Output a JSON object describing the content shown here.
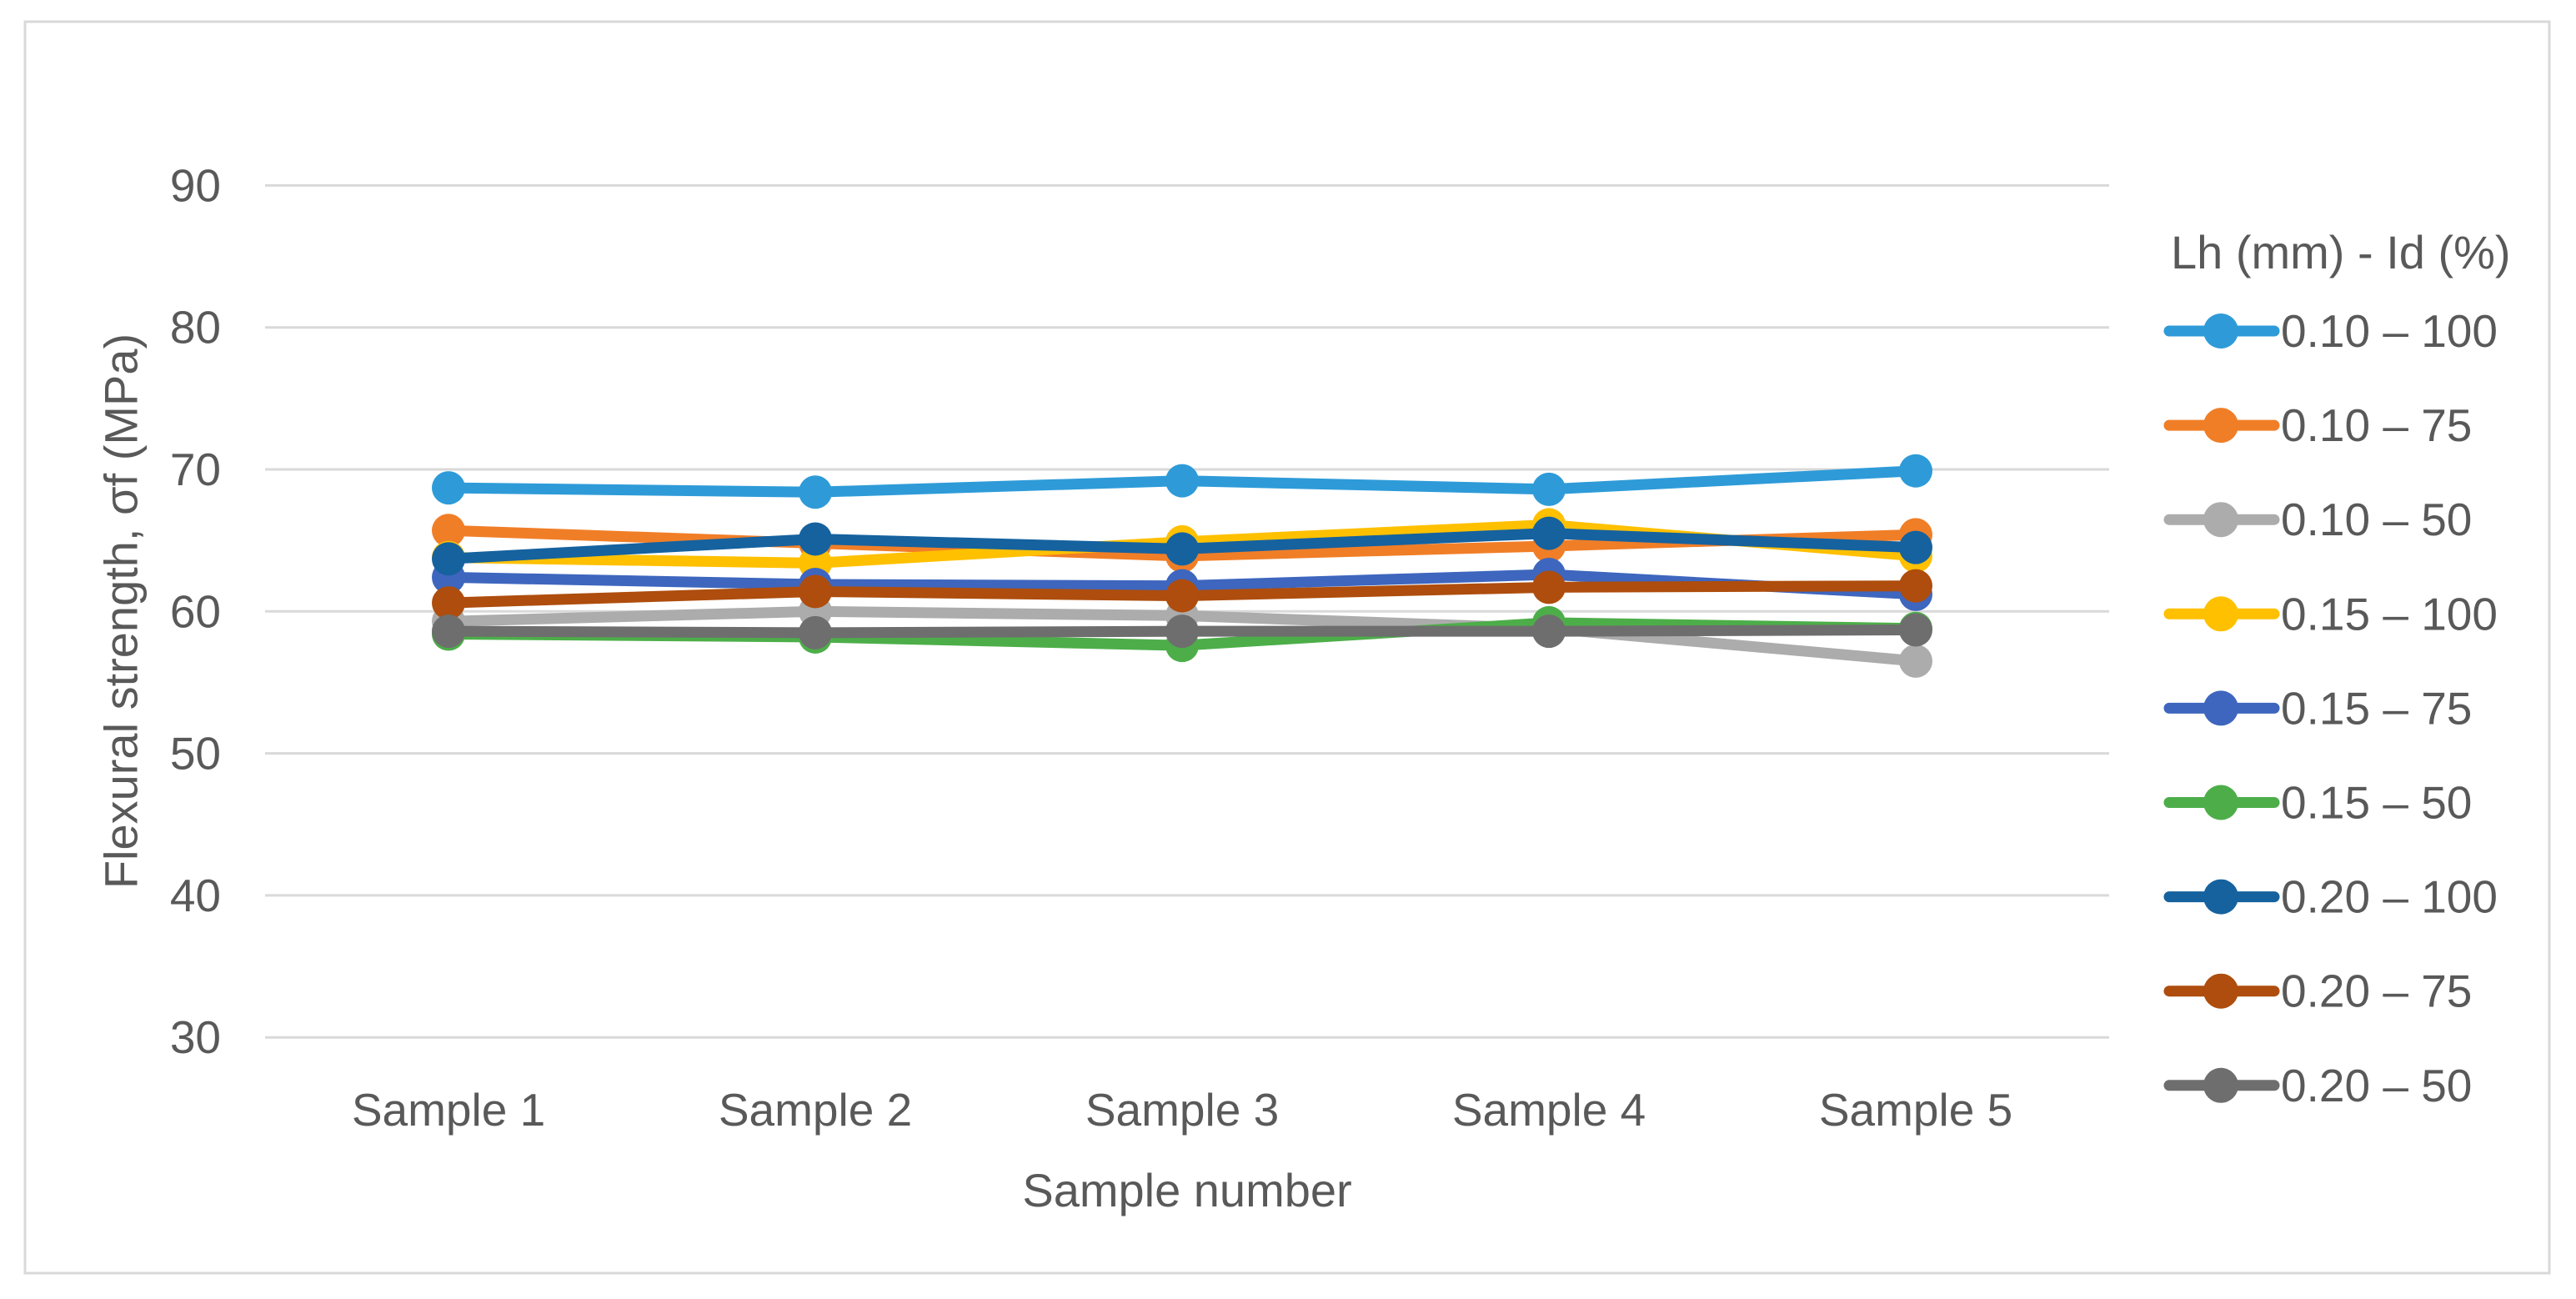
{
  "figure": {
    "border_color": "#D9D9D9",
    "background": "#FFFFFF"
  },
  "chart_data": {
    "type": "line",
    "title": "",
    "xlabel": "Sample number",
    "ylabel": "Flexural strength, σf (MPa)",
    "categories": [
      "Sample 1",
      "Sample 2",
      "Sample 3",
      "Sample 4",
      "Sample 5"
    ],
    "yticks": [
      30,
      40,
      50,
      60,
      70,
      80,
      90
    ],
    "ylim": [
      30,
      90
    ],
    "grid": true,
    "grid_color": "#D9D9D9",
    "text_color": "#595959",
    "legend_position": "right",
    "legend_title": "Lh (mm) - Id (%)",
    "series": [
      {
        "name": "0.10 – 100",
        "color": "#2E9BD8",
        "values": [
          68.7,
          68.4,
          69.2,
          68.6,
          69.9
        ]
      },
      {
        "name": "0.10 – 75",
        "color": "#F07E27",
        "values": [
          65.7,
          64.8,
          63.9,
          64.6,
          65.4
        ]
      },
      {
        "name": "0.10 – 50",
        "color": "#ACACAC",
        "values": [
          59.3,
          60.0,
          59.7,
          58.8,
          56.5
        ]
      },
      {
        "name": "0.15 – 100",
        "color": "#FFC000",
        "values": [
          63.8,
          63.4,
          64.9,
          66.1,
          63.9
        ]
      },
      {
        "name": "0.15 – 75",
        "color": "#3E66BE",
        "values": [
          62.4,
          61.9,
          61.8,
          62.6,
          61.2
        ]
      },
      {
        "name": "0.15 – 50",
        "color": "#4DAE49",
        "values": [
          58.4,
          58.2,
          57.6,
          59.2,
          58.8
        ]
      },
      {
        "name": "0.20 – 100",
        "color": "#15629F",
        "values": [
          63.7,
          65.1,
          64.4,
          65.5,
          64.5
        ]
      },
      {
        "name": "0.20 – 75",
        "color": "#AE4D0D",
        "values": [
          60.6,
          61.4,
          61.1,
          61.7,
          61.8
        ]
      },
      {
        "name": "0.20 – 50",
        "color": "#6E6E6E",
        "values": [
          58.6,
          58.5,
          58.6,
          58.6,
          58.7
        ]
      }
    ]
  }
}
